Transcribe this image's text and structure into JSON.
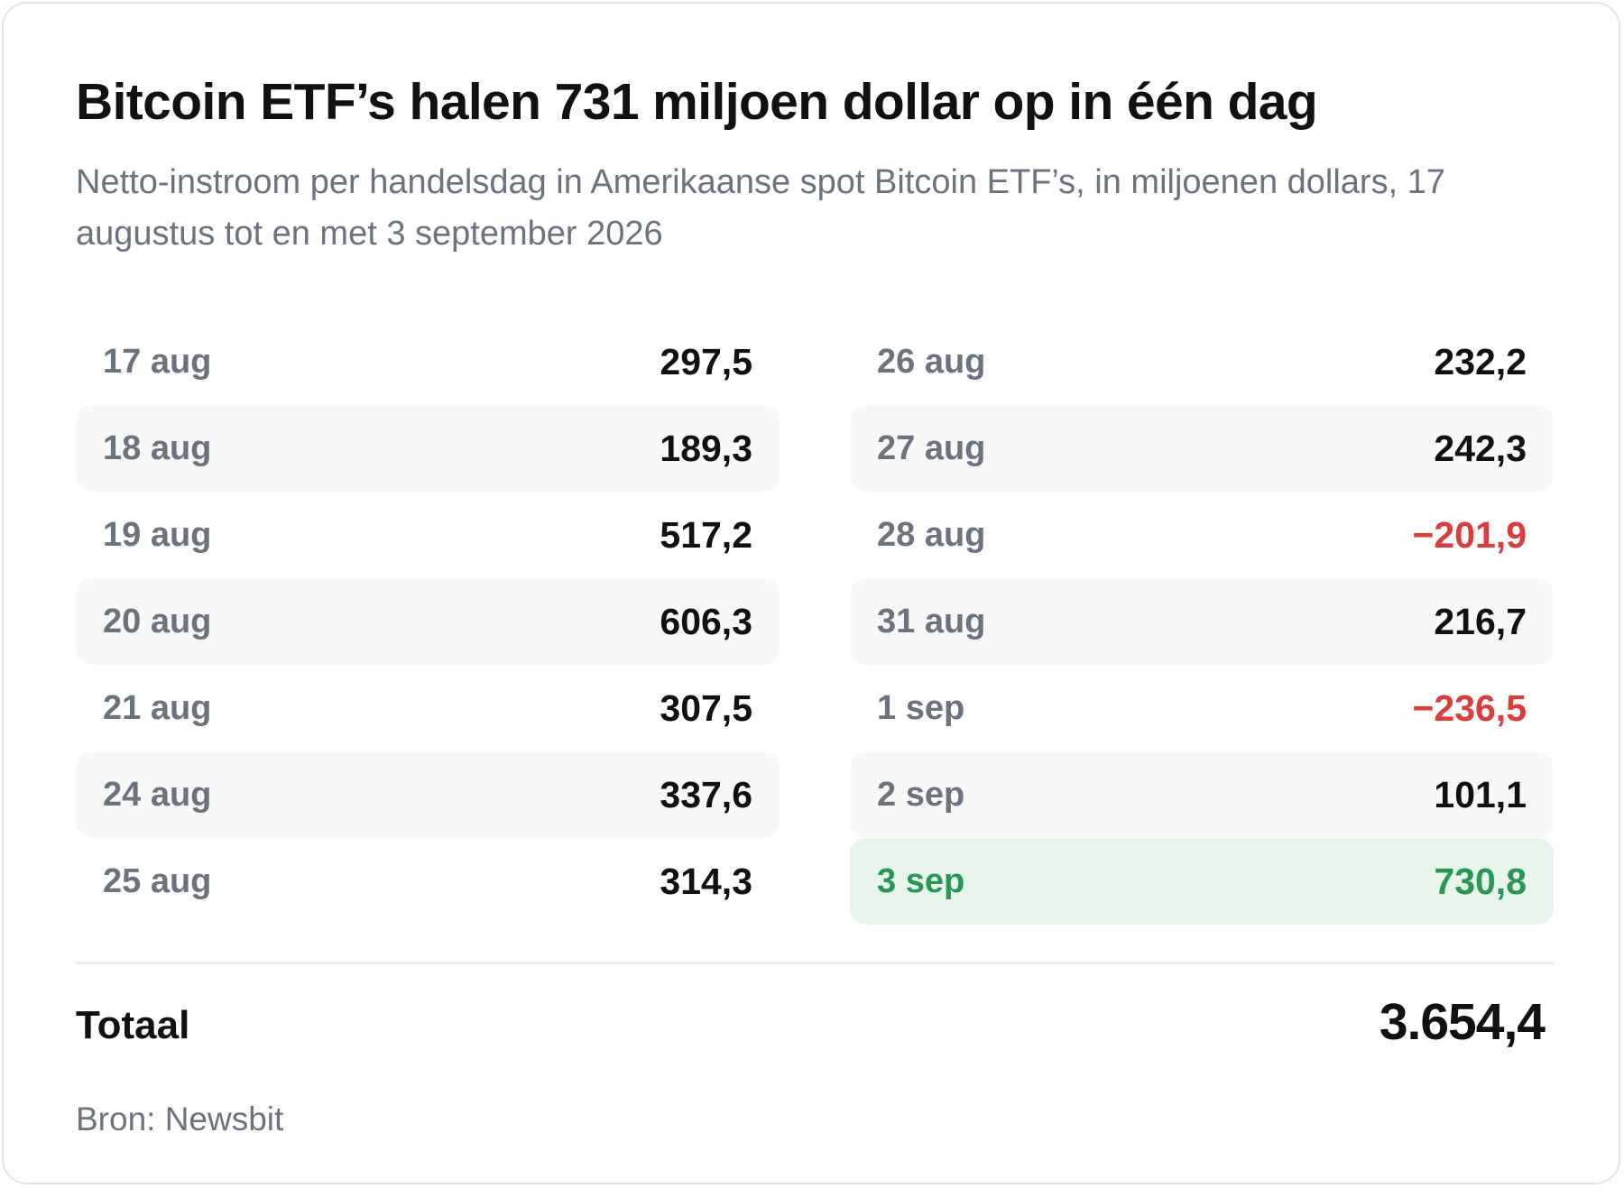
{
  "title": "Bitcoin ETF’s halen 731 miljoen dollar op in één dag",
  "subtitle": "Netto-instroom per handelsdag in Amerikaanse spot Bitcoin ETF’s, in miljoenen dollars, 17 augustus tot en met 3 september 2026",
  "chart_data": {
    "type": "table",
    "unit": "miljoenen dollars",
    "columns": [
      [
        {
          "date": "17 aug",
          "value_label": "297,5",
          "value": 297.5
        },
        {
          "date": "18 aug",
          "value_label": "189,3",
          "value": 189.3
        },
        {
          "date": "19 aug",
          "value_label": "517,2",
          "value": 517.2
        },
        {
          "date": "20 aug",
          "value_label": "606,3",
          "value": 606.3
        },
        {
          "date": "21 aug",
          "value_label": "307,5",
          "value": 307.5
        },
        {
          "date": "24 aug",
          "value_label": "337,6",
          "value": 337.6
        },
        {
          "date": "25 aug",
          "value_label": "314,3",
          "value": 314.3
        }
      ],
      [
        {
          "date": "26 aug",
          "value_label": "232,2",
          "value": 232.2
        },
        {
          "date": "27 aug",
          "value_label": "242,3",
          "value": 242.3
        },
        {
          "date": "28 aug",
          "value_label": "−201,9",
          "value": -201.9
        },
        {
          "date": "31 aug",
          "value_label": "216,7",
          "value": 216.7
        },
        {
          "date": "1 sep",
          "value_label": "−236,5",
          "value": -236.5
        },
        {
          "date": "2 sep",
          "value_label": "101,1",
          "value": 101.1
        },
        {
          "date": "3 sep",
          "value_label": "730,8",
          "value": 730.8,
          "highlight": true
        }
      ]
    ],
    "total_label": "Totaal",
    "total_value_label": "3.654,4",
    "total_value": 3654.4,
    "colors": {
      "negative": "#dc3c3c",
      "highlight": "#2a9653",
      "highlight_background": "#e8f5ec"
    }
  },
  "source": "Bron: Newsbit"
}
